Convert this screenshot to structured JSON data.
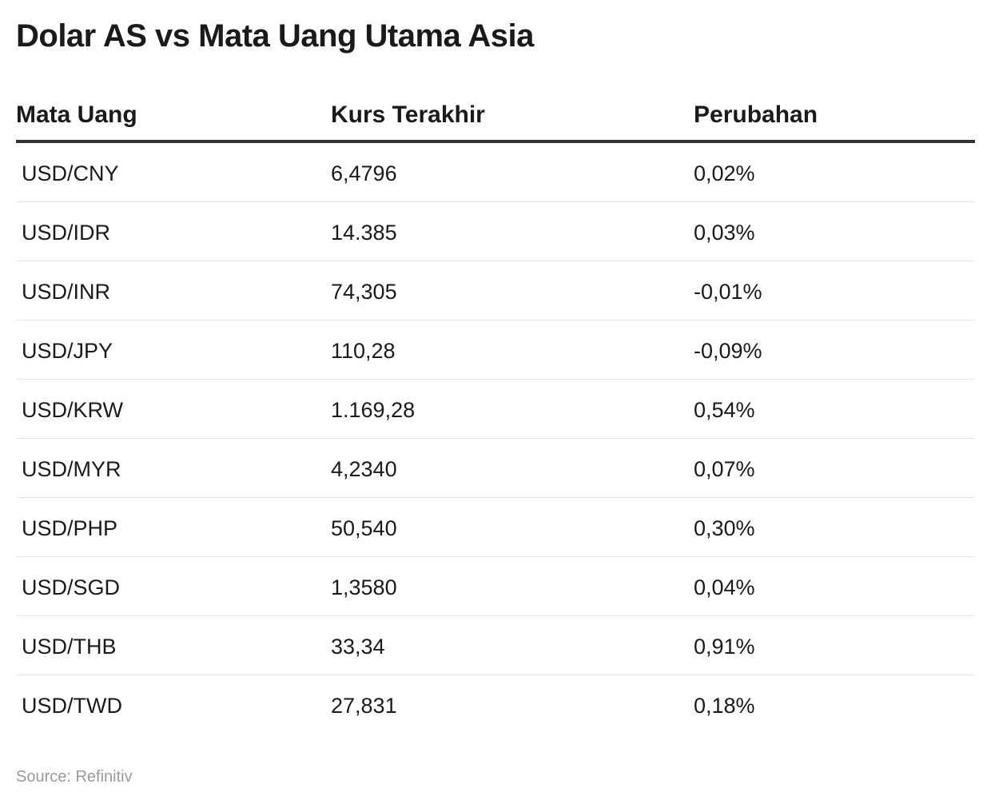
{
  "title": "Dolar AS vs Mata Uang Utama Asia",
  "source": "Source: Refinitiv",
  "chart_data": {
    "type": "table",
    "title": "Dolar AS vs Mata Uang Utama Asia",
    "columns": [
      "Mata Uang",
      "Kurs Terakhir",
      "Perubahan"
    ],
    "rows": [
      [
        "USD/CNY",
        "6,4796",
        "0,02%"
      ],
      [
        "USD/IDR",
        "14.385",
        "0,03%"
      ],
      [
        "USD/INR",
        "74,305",
        "-0,01%"
      ],
      [
        "USD/JPY",
        "110,28",
        "-0,09%"
      ],
      [
        "USD/KRW",
        "1.169,28",
        "0,54%"
      ],
      [
        "USD/MYR",
        "4,2340",
        "0,07%"
      ],
      [
        "USD/PHP",
        "50,540",
        "0,30%"
      ],
      [
        "USD/SGD",
        "1,3580",
        "0,04%"
      ],
      [
        "USD/THB",
        "33,34",
        "0,91%"
      ],
      [
        "USD/TWD",
        "27,831",
        "0,18%"
      ]
    ],
    "source": "Source: Refinitiv"
  }
}
